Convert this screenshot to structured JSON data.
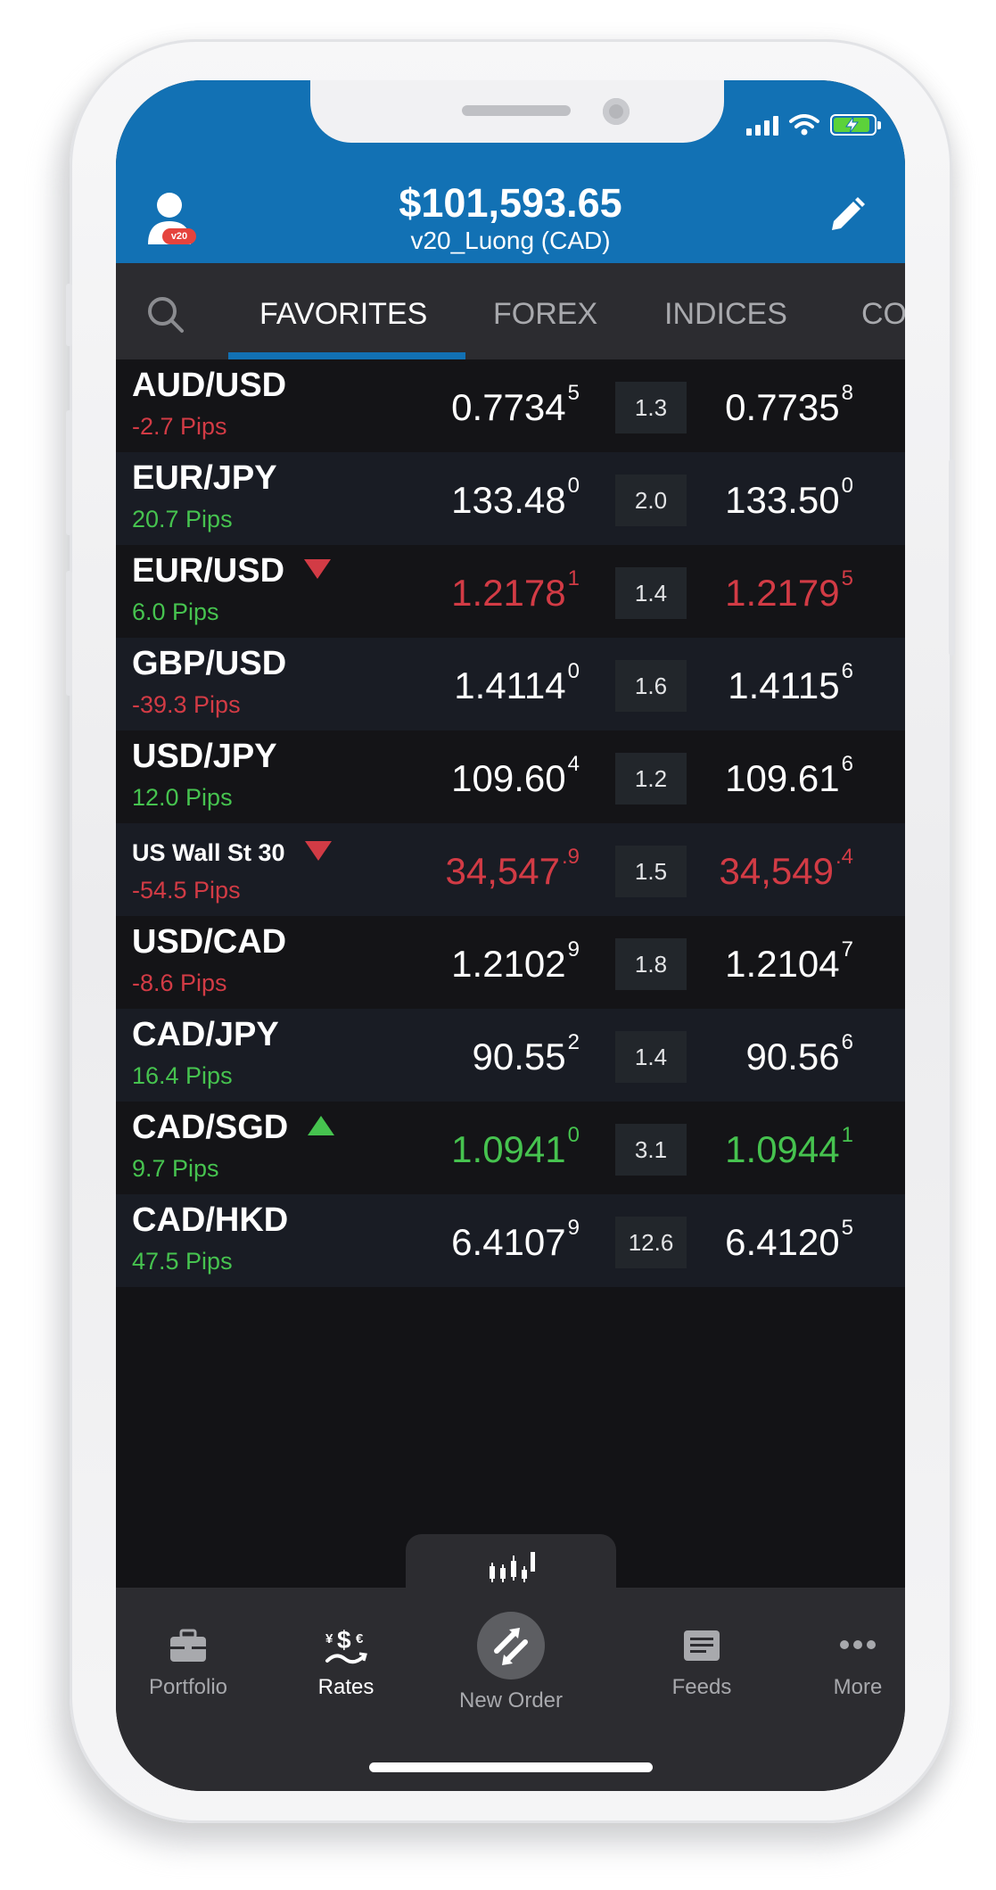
{
  "header": {
    "balance": "$101,593.65",
    "account": "v20_Luong (CAD)",
    "avatar_badge": "v20"
  },
  "tabs": [
    {
      "label": "FAVORITES",
      "active": true
    },
    {
      "label": "FOREX",
      "active": false
    },
    {
      "label": "INDICES",
      "active": false
    },
    {
      "label": "CO",
      "active": false
    }
  ],
  "rates": [
    {
      "symbol": "AUD/USD",
      "pips": "-2.7 Pips",
      "pips_sign": "neg",
      "trend": "",
      "bid": "0.7734",
      "bid_sup": "5",
      "spread": "1.3",
      "ask": "0.7735",
      "ask_sup": "8",
      "price_color": "white"
    },
    {
      "symbol": "EUR/JPY",
      "pips": "20.7 Pips",
      "pips_sign": "pos",
      "trend": "",
      "bid": "133.48",
      "bid_sup": "0",
      "spread": "2.0",
      "ask": "133.50",
      "ask_sup": "0",
      "price_color": "white"
    },
    {
      "symbol": "EUR/USD",
      "pips": "6.0 Pips",
      "pips_sign": "pos",
      "trend": "down",
      "bid": "1.2178",
      "bid_sup": "1",
      "spread": "1.4",
      "ask": "1.2179",
      "ask_sup": "5",
      "price_color": "red"
    },
    {
      "symbol": "GBP/USD",
      "pips": "-39.3 Pips",
      "pips_sign": "neg",
      "trend": "",
      "bid": "1.4114",
      "bid_sup": "0",
      "spread": "1.6",
      "ask": "1.4115",
      "ask_sup": "6",
      "price_color": "white"
    },
    {
      "symbol": "USD/JPY",
      "pips": "12.0 Pips",
      "pips_sign": "pos",
      "trend": "",
      "bid": "109.60",
      "bid_sup": "4",
      "spread": "1.2",
      "ask": "109.61",
      "ask_sup": "6",
      "price_color": "white"
    },
    {
      "symbol": "US Wall St 30",
      "pips": "-54.5 Pips",
      "pips_sign": "neg",
      "trend": "down",
      "bid": "34,547",
      "bid_sup": ".9",
      "spread": "1.5",
      "ask": "34,549",
      "ask_sup": ".4",
      "price_color": "red",
      "small": true
    },
    {
      "symbol": "USD/CAD",
      "pips": "-8.6 Pips",
      "pips_sign": "neg",
      "trend": "",
      "bid": "1.2102",
      "bid_sup": "9",
      "spread": "1.8",
      "ask": "1.2104",
      "ask_sup": "7",
      "price_color": "white"
    },
    {
      "symbol": "CAD/JPY",
      "pips": "16.4 Pips",
      "pips_sign": "pos",
      "trend": "",
      "bid": "90.55",
      "bid_sup": "2",
      "spread": "1.4",
      "ask": "90.56",
      "ask_sup": "6",
      "price_color": "white"
    },
    {
      "symbol": "CAD/SGD",
      "pips": "9.7 Pips",
      "pips_sign": "pos",
      "trend": "up",
      "bid": "1.0941",
      "bid_sup": "0",
      "spread": "3.1",
      "ask": "1.0944",
      "ask_sup": "1",
      "price_color": "green"
    },
    {
      "symbol": "CAD/HKD",
      "pips": "47.5 Pips",
      "pips_sign": "pos",
      "trend": "",
      "bid": "6.4107",
      "bid_sup": "9",
      "spread": "12.6",
      "ask": "6.4120",
      "ask_sup": "5",
      "price_color": "white"
    }
  ],
  "bottom_nav": [
    {
      "label": "Portfolio",
      "icon": "briefcase-icon",
      "active": false
    },
    {
      "label": "Rates",
      "icon": "rates-icon",
      "active": true
    },
    {
      "label": "New Order",
      "icon": "new-order-icon",
      "active": false
    },
    {
      "label": "Feeds",
      "icon": "feeds-icon",
      "active": false
    },
    {
      "label": "More",
      "icon": "more-icon",
      "active": false
    }
  ],
  "colors": {
    "header_blue": "#1271b4",
    "positive": "#46c34f",
    "negative": "#d23b45"
  }
}
